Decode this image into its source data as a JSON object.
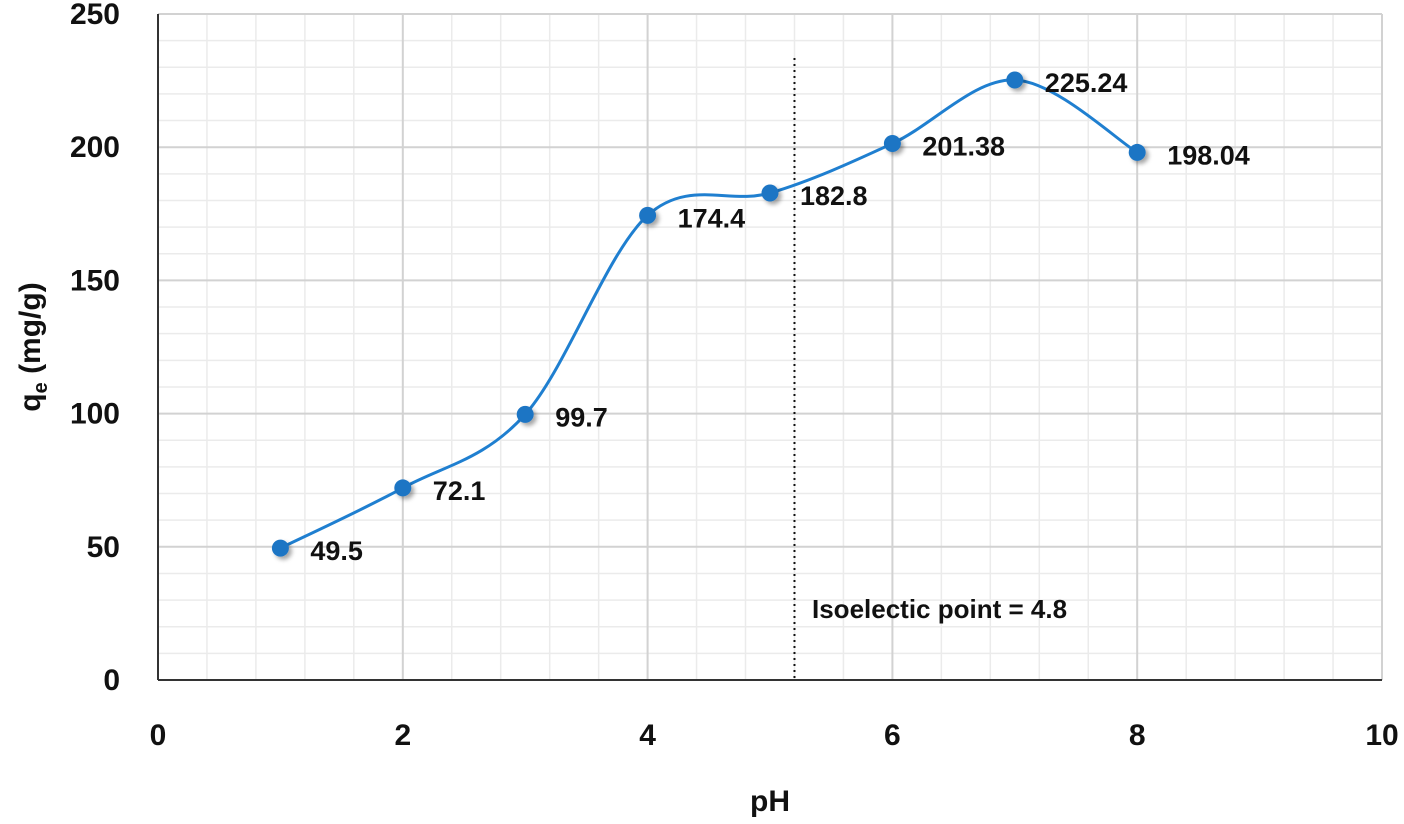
{
  "chart_data": {
    "type": "line",
    "smooth": true,
    "x": [
      1,
      2,
      3,
      4,
      5,
      6,
      7,
      8
    ],
    "series": [
      {
        "values": [
          49.5,
          72.1,
          99.7,
          174.4,
          182.8,
          201.38,
          225.24,
          198.04
        ]
      }
    ],
    "data_labels": [
      "49.5",
      "72.1",
      "99.7",
      "174.4",
      "182.8",
      "201.38",
      "225.24",
      "198.04"
    ],
    "xlabel": "pH",
    "ylabel_main": "q",
    "ylabel_sub": "e",
    "ylabel_unit": " (mg/g)",
    "xlim": [
      0,
      10
    ],
    "ylim": [
      0,
      250
    ],
    "x_ticks": [
      0,
      2,
      4,
      6,
      8,
      10
    ],
    "x_tick_labels": [
      "0",
      "2",
      "4",
      "6",
      "8",
      "10"
    ],
    "y_ticks": [
      0,
      50,
      100,
      150,
      200,
      250
    ],
    "y_tick_labels": [
      "0",
      "50",
      "100",
      "150",
      "200",
      "250"
    ],
    "grid": true,
    "minor_grid": true,
    "line_color": "#1f7fd0",
    "marker_color": "#1b74c4",
    "reference_line": {
      "x": 5.2,
      "style": "dotted"
    },
    "annotation": "Isoelectic point = 4.8"
  }
}
